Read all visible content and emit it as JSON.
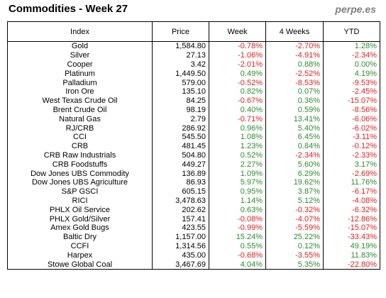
{
  "header": {
    "title": "Commodities - Week 27",
    "brand": "perpe.es"
  },
  "columns": [
    "Index",
    "Price",
    "Week",
    "4 Weeks",
    "YTD"
  ],
  "colors": {
    "positive": "#2e8b2e",
    "negative": "#e02020"
  },
  "rows": [
    {
      "name": "Gold",
      "price": "1,584.80",
      "week": "-0.78%",
      "w4": "-2.70%",
      "ytd": "1.28%"
    },
    {
      "name": "Silver",
      "price": "27.13",
      "week": "-1.06%",
      "w4": "-4.91%",
      "ytd": "-2.34%"
    },
    {
      "name": "Cooper",
      "price": "3.42",
      "week": "-2.01%",
      "w4": "0.88%",
      "ytd": "0.00%"
    },
    {
      "name": "Platinum",
      "price": "1,449.50",
      "week": "0.49%",
      "w4": "-2.52%",
      "ytd": "4.19%"
    },
    {
      "name": "Palladium",
      "price": "579.00",
      "week": "-0.52%",
      "w4": "-8.53%",
      "ytd": "-9.53%"
    },
    {
      "name": "Iron Ore",
      "price": "135.10",
      "week": "0.82%",
      "w4": "0.07%",
      "ytd": "-2.45%"
    },
    {
      "name": "West Texas Crude Oil",
      "price": "84.25",
      "week": "-0.67%",
      "w4": "0.36%",
      "ytd": "-15.07%"
    },
    {
      "name": "Brent Crude Oil",
      "price": "98.19",
      "week": "0.40%",
      "w4": "0.59%",
      "ytd": "-8.56%"
    },
    {
      "name": "Natural Gas",
      "price": "2.79",
      "week": "-0.71%",
      "w4": "13.41%",
      "ytd": "-6.06%"
    },
    {
      "name": "RJ/CRB",
      "price": "286.92",
      "week": "0.96%",
      "w4": "5.40%",
      "ytd": "-6.02%"
    },
    {
      "name": "CCI",
      "price": "545.50",
      "week": "1.08%",
      "w4": "6.45%",
      "ytd": "-3.11%"
    },
    {
      "name": "CRB",
      "price": "481.45",
      "week": "1.23%",
      "w4": "0.84%",
      "ytd": "-0.12%"
    },
    {
      "name": "CRB Raw Industrials",
      "price": "504.80",
      "week": "0.52%",
      "w4": "-2.34%",
      "ytd": "-2.33%"
    },
    {
      "name": "CRB Foodstuffs",
      "price": "449.27",
      "week": "2.27%",
      "w4": "5.60%",
      "ytd": "3.17%"
    },
    {
      "name": "Dow Jones UBS Commodity",
      "price": "136.89",
      "week": "1.09%",
      "w4": "6.29%",
      "ytd": "-2.69%"
    },
    {
      "name": "Dow Jones UBS Agriculture",
      "price": "86.93",
      "week": "5.97%",
      "w4": "19.62%",
      "ytd": "11.76%"
    },
    {
      "name": "S&P GSCI",
      "price": "605.15",
      "week": "0.95%",
      "w4": "3.87%",
      "ytd": "-6.17%"
    },
    {
      "name": "RICI",
      "price": "3,478.63",
      "week": "1.14%",
      "w4": "5.12%",
      "ytd": "-4.08%"
    },
    {
      "name": "PHLX Oil Service",
      "price": "202.62",
      "week": "0.63%",
      "w4": "-0.32%",
      "ytd": "-6.32%"
    },
    {
      "name": "PHLX Gold/Silver",
      "price": "157.41",
      "week": "-0.08%",
      "w4": "-4.07%",
      "ytd": "-12.86%"
    },
    {
      "name": "Amex Gold Bugs",
      "price": "423.55",
      "week": "-0.99%",
      "w4": "-5.59%",
      "ytd": "-15.07%"
    },
    {
      "name": "Baltic Dry",
      "price": "1,157.00",
      "week": "15.24%",
      "w4": "25.22%",
      "ytd": "-33.43%"
    },
    {
      "name": "CCFI",
      "price": "1,314.56",
      "week": "0.55%",
      "w4": "0.12%",
      "ytd": "49.19%"
    },
    {
      "name": "Harpex",
      "price": "435.00",
      "week": "-0.68%",
      "w4": "-3.55%",
      "ytd": "11.83%"
    },
    {
      "name": "Stowe Global Coal",
      "price": "3,467.69",
      "week": "4.04%",
      "w4": "5.35%",
      "ytd": "-22.80%"
    }
  ]
}
